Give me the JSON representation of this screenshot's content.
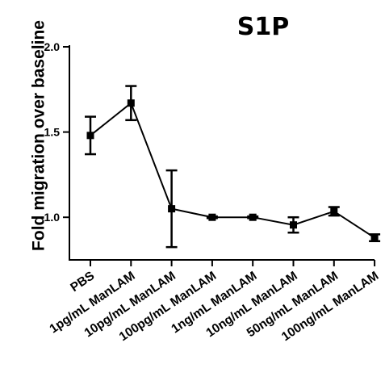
{
  "chart_data": {
    "type": "line",
    "title": "S1P",
    "xlabel": "",
    "ylabel": "Fold migration over baseline",
    "ylim": [
      0.75,
      2.0
    ],
    "yticks": [
      "1.0",
      "1.5",
      "2.0"
    ],
    "grid": false,
    "legend": "none",
    "categories": [
      "PBS",
      "1pg/mL ManLAM",
      "10pg/mL ManLAM",
      "100pg/mL ManLAM",
      "1ng/mL ManLAM",
      "10ng/mL ManLAM",
      "50ng/mL ManLAM",
      "100ng/mL ManLAM"
    ],
    "series": [
      {
        "values": [
          1.48,
          1.67,
          1.05,
          1.0,
          1.0,
          0.955,
          1.035,
          0.88
        ],
        "error": [
          0.11,
          0.1,
          0.225,
          0.005,
          0.005,
          0.045,
          0.025,
          0.02
        ],
        "color": "#000000"
      }
    ]
  }
}
